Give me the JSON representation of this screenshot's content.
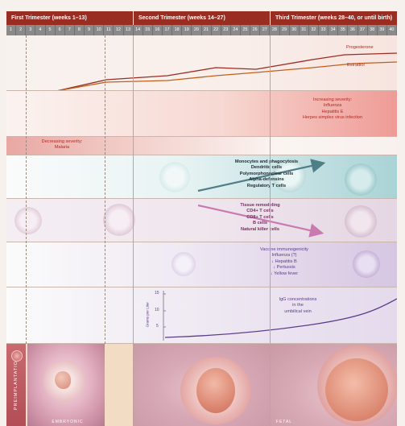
{
  "trimesters": [
    {
      "label": "First Trimester (weeks 1–13)"
    },
    {
      "label": "Second Trimester (weeks 14–27)"
    },
    {
      "label": "Third Trimester (weeks 28–40, or until birth)"
    }
  ],
  "weeks": [
    "1",
    "2",
    "3",
    "4",
    "5",
    "6",
    "7",
    "8",
    "9",
    "10",
    "11",
    "12",
    "13",
    "14",
    "15",
    "16",
    "17",
    "18",
    "19",
    "20",
    "21",
    "22",
    "23",
    "24",
    "25",
    "26",
    "27",
    "28",
    "29",
    "30",
    "31",
    "32",
    "33",
    "34",
    "35",
    "36",
    "37",
    "38",
    "39",
    "40"
  ],
  "hormones": {
    "progesterone_label": "Progesterone",
    "estradiol_label": "Estradiol",
    "colors": {
      "progesterone": "#9a2d22",
      "estradiol": "#c0601e"
    }
  },
  "infection_increasing": {
    "heading": "Increasing severity:",
    "items": [
      "Influenza",
      "Hepatitis E",
      "Herpes simplex virus infection"
    ]
  },
  "infection_decreasing": {
    "heading": "Decreasing severity:",
    "items": [
      "Malaria"
    ]
  },
  "innate": {
    "items": [
      "Monocytes and phagocytosis",
      "Dendritic cells",
      "Polymorphonuclear cells",
      "Alpha-defensins",
      "Regulatory T cells"
    ],
    "arrow_color": "#4f7f86"
  },
  "adaptive": {
    "items": [
      "Tissue remodeling",
      "CD4+ T cells",
      "CD8+ T cells",
      "B cells",
      "Natural killer cells"
    ],
    "arrow_color": "#c97ab0"
  },
  "vaccine": {
    "items": [
      "Vaccine immunogenicity",
      "Influenza (?)",
      "↓ Hepatitis B",
      "↓ Pertussis",
      "↓ Yellow fever"
    ]
  },
  "igg": {
    "label_lines": [
      "IgG concentrations",
      "in the",
      "umbilical vein"
    ],
    "y_axis_label": "Grams per Liter",
    "y_ticks": [
      "15",
      "10",
      "5"
    ]
  },
  "fetal": {
    "preimplantation_label": "PREIMPLANTATION",
    "embryonic_label": "EMBRYONIC",
    "fetal_label": "FETAL"
  }
}
